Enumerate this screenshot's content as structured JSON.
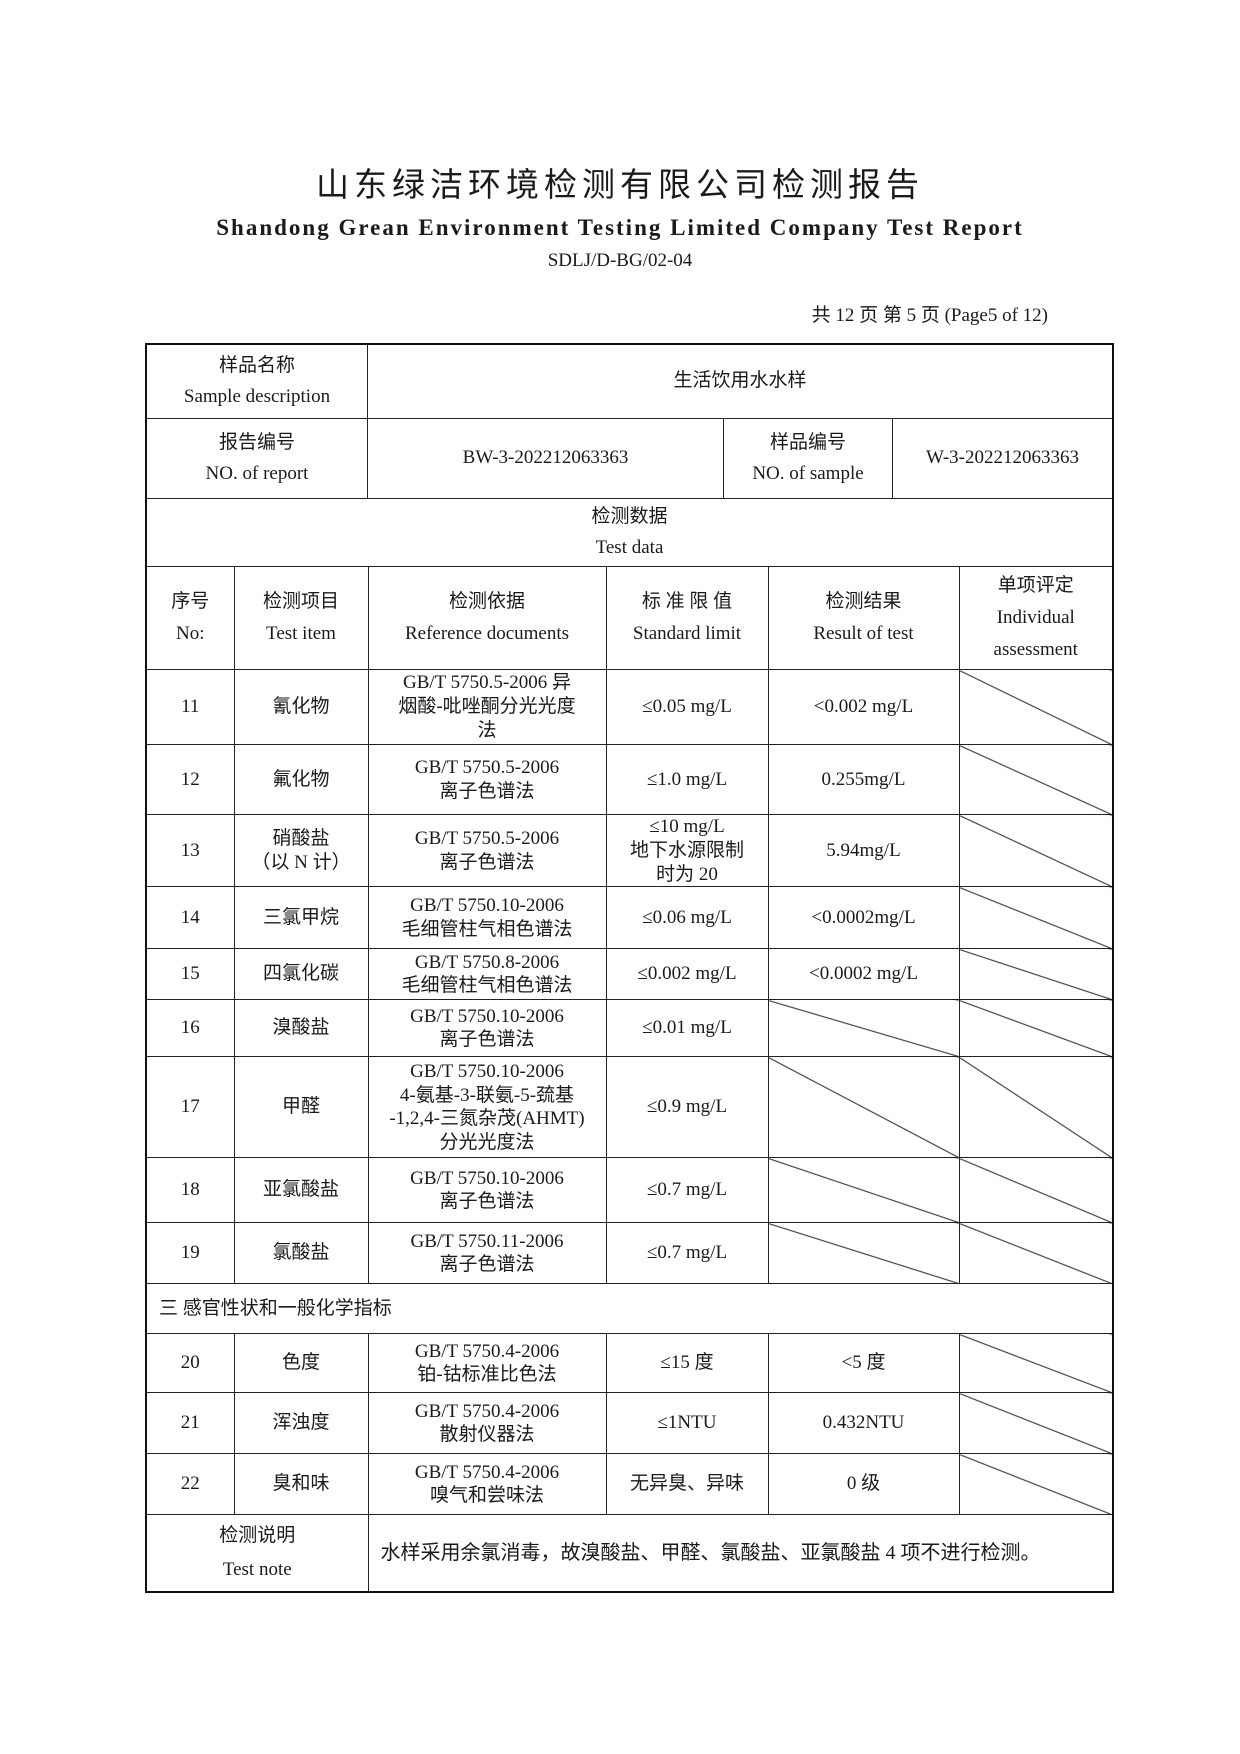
{
  "header": {
    "title_cn": "山东绿洁环境检测有限公司检测报告",
    "title_en": "Shandong Grean Environment Testing Limited Company Test Report",
    "doc_code": "SDLJ/D-BG/02-04",
    "page_info": "共 12 页  第 5 页  (Page5 of 12)"
  },
  "info": {
    "sample_label": "样品名称\nSample description",
    "sample_value": "生活饮用水水样",
    "report_label": "报告编号\nNO. of report",
    "report_value": "BW-3-202212063363",
    "sample_no_label": "样品编号\nNO. of sample",
    "sample_no_value": "W-3-202212063363",
    "test_data_label": "检测数据\nTest data"
  },
  "columns": [
    "序号\nNo:",
    "检测项目\nTest item",
    "检测依据\nReference documents",
    "标 准 限 值\nStandard limit",
    "检测结果\nResult of test",
    "单项评定\nIndividual\nassessment"
  ],
  "rows": [
    {
      "no": "11",
      "item": "氰化物",
      "ref": "GB/T 5750.5-2006  异\n烟酸-吡唑酮分光光度\n法",
      "limit": "≤0.05 mg/L",
      "result": "<0.002 mg/L"
    },
    {
      "no": "12",
      "item": "氟化物",
      "ref": "GB/T 5750.5-2006\n离子色谱法",
      "limit": "≤1.0 mg/L",
      "result": "0.255mg/L"
    },
    {
      "no": "13",
      "item": "硝酸盐\n（以 N 计）",
      "ref": "GB/T 5750.5-2006\n离子色谱法",
      "limit": "≤10 mg/L\n地下水源限制\n时为 20",
      "result": "5.94mg/L"
    },
    {
      "no": "14",
      "item": "三氯甲烷",
      "ref": "GB/T 5750.10-2006\n毛细管柱气相色谱法",
      "limit": "≤0.06 mg/L",
      "result": "<0.0002mg/L"
    },
    {
      "no": "15",
      "item": "四氯化碳",
      "ref": "GB/T 5750.8-2006\n毛细管柱气相色谱法",
      "limit": "≤0.002 mg/L",
      "result": "<0.0002 mg/L"
    },
    {
      "no": "16",
      "item": "溴酸盐",
      "ref": "GB/T 5750.10-2006\n离子色谱法",
      "limit": "≤0.01 mg/L",
      "result": ""
    },
    {
      "no": "17",
      "item": "甲醛",
      "ref": "GB/T 5750.10-2006\n4-氨基-3-联氨-5-巯基\n-1,2,4-三氮杂茂(AHMT)\n分光光度法",
      "limit": "≤0.9 mg/L",
      "result": ""
    },
    {
      "no": "18",
      "item": "亚氯酸盐",
      "ref": "GB/T 5750.10-2006\n离子色谱法",
      "limit": "≤0.7 mg/L",
      "result": ""
    },
    {
      "no": "19",
      "item": "氯酸盐",
      "ref": "GB/T 5750.11-2006\n离子色谱法",
      "limit": "≤0.7 mg/L",
      "result": ""
    }
  ],
  "section3_title": "三  感官性状和一般化学指标",
  "rows2": [
    {
      "no": "20",
      "item": "色度",
      "ref": "GB/T 5750.4-2006\n铂-钴标准比色法",
      "limit": "≤15 度",
      "result": "<5 度"
    },
    {
      "no": "21",
      "item": "浑浊度",
      "ref": "GB/T 5750.4-2006\n散射仪器法",
      "limit": "≤1NTU",
      "result": "0.432NTU"
    },
    {
      "no": "22",
      "item": "臭和味",
      "ref": "GB/T 5750.4-2006\n嗅气和尝味法",
      "limit": "无异臭、异味",
      "result": "0 级"
    }
  ],
  "note": {
    "label": "检测说明\nTest note",
    "text": "水样采用余氯消毒，故溴酸盐、甲醛、氯酸盐、亚氯酸盐 4 项不进行检测。"
  }
}
